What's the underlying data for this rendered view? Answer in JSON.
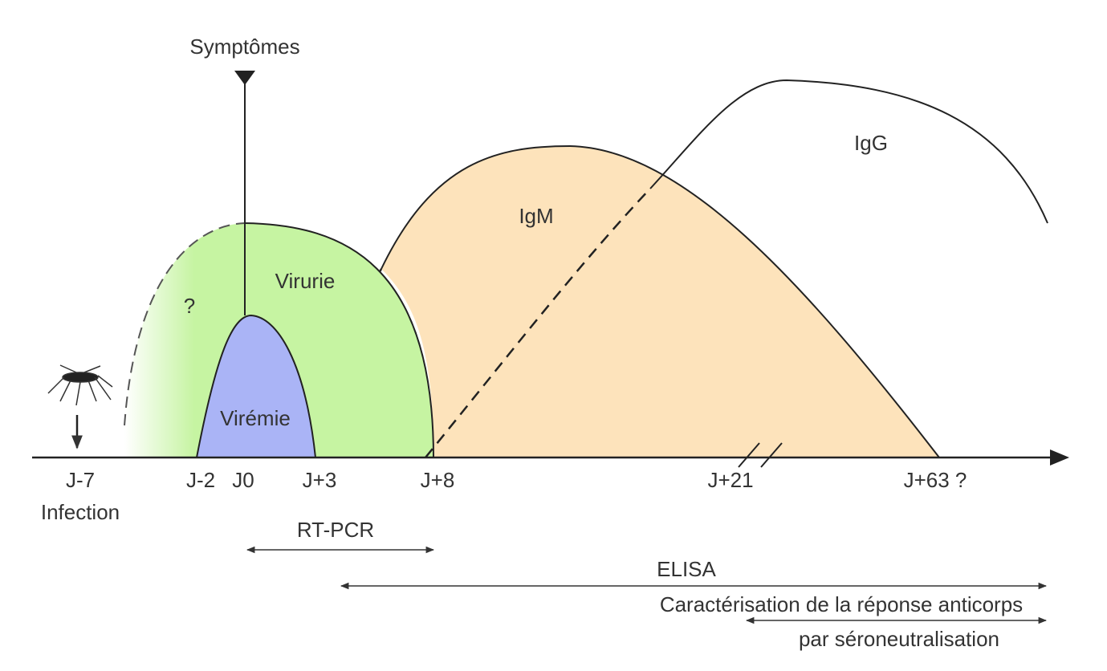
{
  "title": "Symptômes",
  "regions": {
    "unknown": "?",
    "viruria": "Virurie",
    "viremia": "Virémie",
    "igm": "IgM",
    "igg": "IgG"
  },
  "axis": {
    "ticks": [
      "J-7",
      "J-2",
      "J0",
      "J+3",
      "J+8",
      "J+21",
      "J+63 ?"
    ],
    "infection": "Infection"
  },
  "methods": {
    "rtpcr": "RT-PCR",
    "elisa": "ELISA",
    "characterisation": "Caractérisation de la réponse anticorps",
    "seroneutralisation": "par séroneutralisation"
  }
}
